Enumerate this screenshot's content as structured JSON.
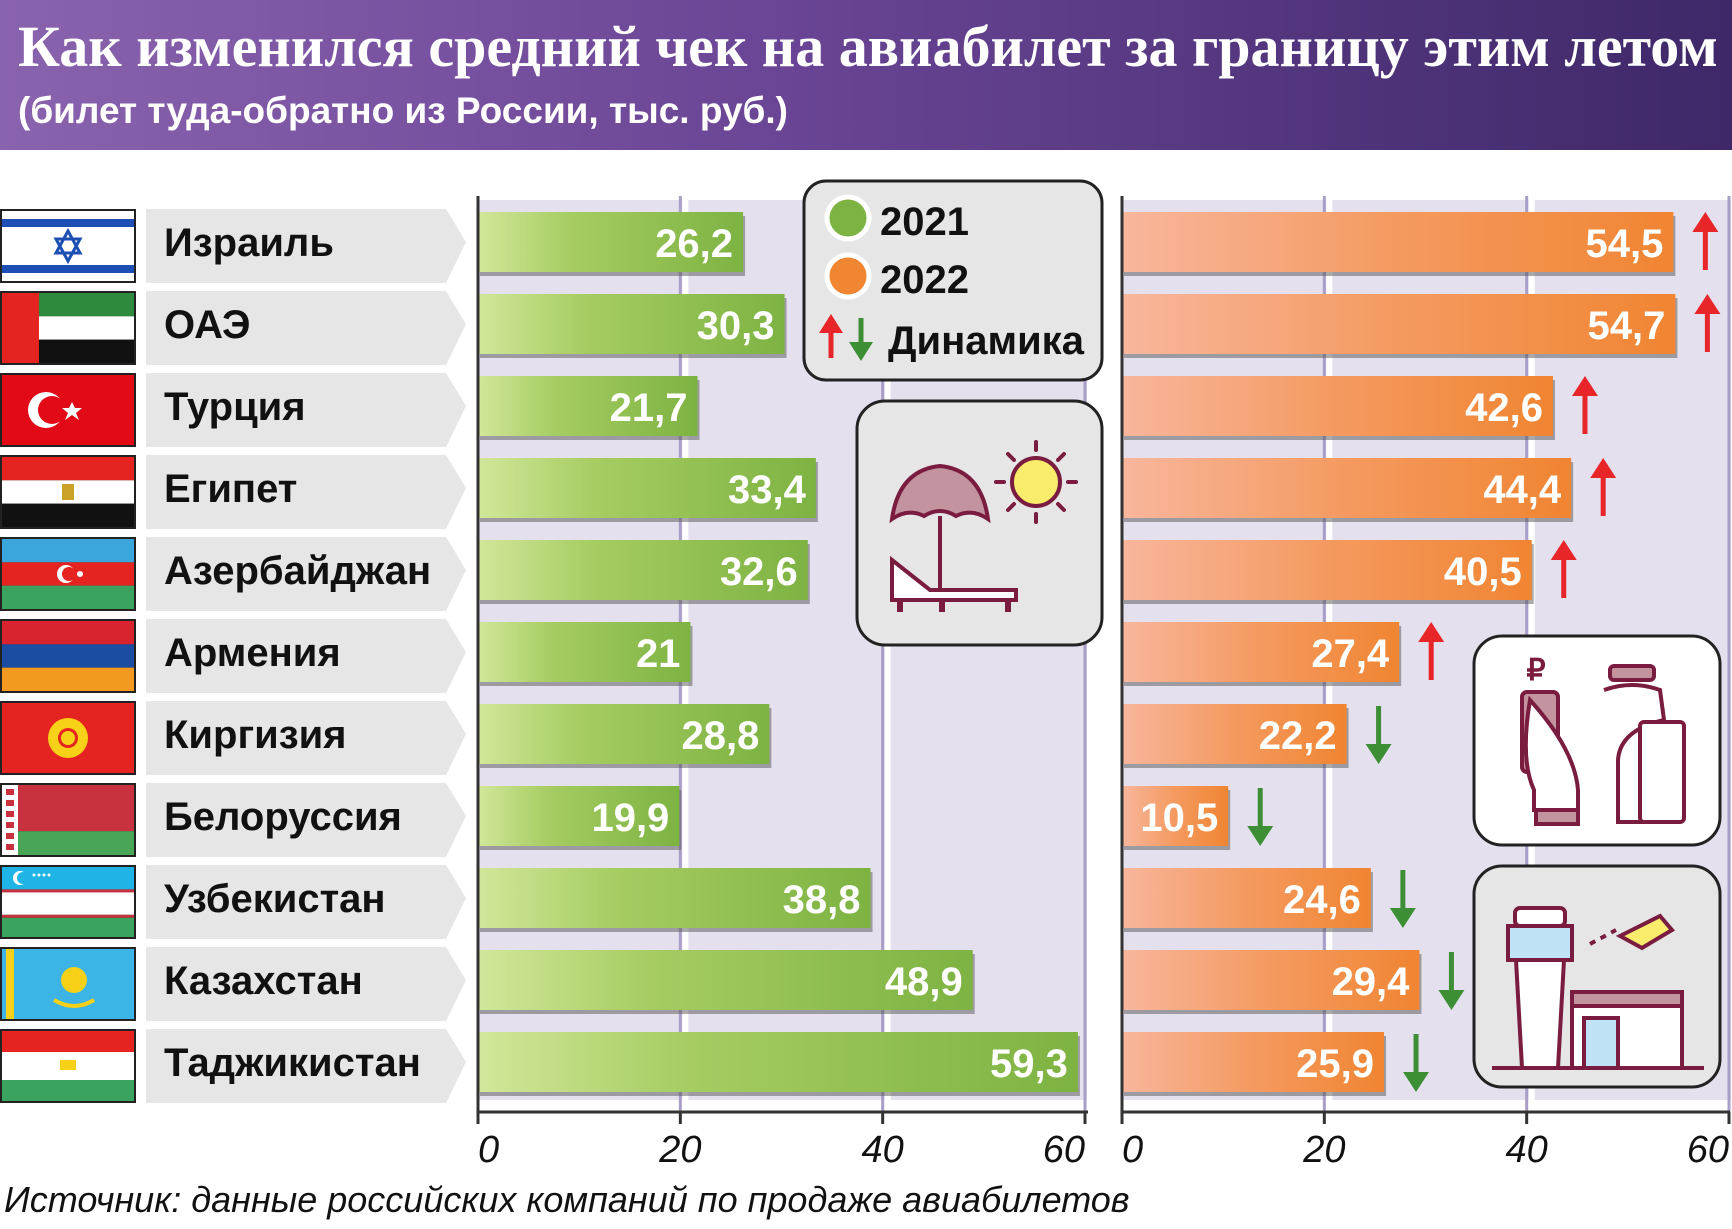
{
  "header": {
    "title": "Как изменился средний чек на авиабилет за границу этим летом",
    "subtitle": "(билет туда-обратно из России, тыс. руб.)"
  },
  "source": "Источник: данные российских компаний по продаже авиабилетов",
  "legend": {
    "series_2021": "2021",
    "series_2022": "2022",
    "dynamics": "Динамика"
  },
  "colors": {
    "green": "#7db342",
    "green_light": "#d2e79a",
    "orange": "#f08532",
    "orange_light": "#f8b69c",
    "arrow_up": "#e8262a",
    "arrow_down": "#3d8f36",
    "plot_bg": "#e5e0ee",
    "grid": "#a99ec7",
    "label_bg": "#e6e6e6",
    "header_start": "#8a63ae",
    "header_end": "#3e2868"
  },
  "icons": [
    "beach-umbrella-sun-icon",
    "payment-ruble-icon",
    "airport-tower-plane-icon"
  ],
  "chart_data": {
    "type": "bar",
    "orientation": "horizontal",
    "categories": [
      "Израиль",
      "ОАЭ",
      "Турция",
      "Египет",
      "Азербайджан",
      "Армения",
      "Киргизия",
      "Белоруссия",
      "Узбекистан",
      "Казахстан",
      "Таджикистан"
    ],
    "series": [
      {
        "name": "2021",
        "values": [
          26.2,
          30.3,
          21.7,
          33.4,
          32.6,
          21,
          28.8,
          19.9,
          38.8,
          48.9,
          59.3
        ],
        "labels": [
          "26,2",
          "30,3",
          "21,7",
          "33,4",
          "32,6",
          "21",
          "28,8",
          "19,9",
          "38,8",
          "48,9",
          "59,3"
        ]
      },
      {
        "name": "2022",
        "values": [
          54.5,
          54.7,
          42.6,
          44.4,
          40.5,
          27.4,
          22.2,
          10.5,
          24.6,
          29.4,
          25.9
        ],
        "labels": [
          "54,5",
          "54,7",
          "42,6",
          "44,4",
          "40,5",
          "27,4",
          "22,2",
          "10,5",
          "24,6",
          "29,4",
          "25,9"
        ]
      }
    ],
    "dynamics": [
      "up",
      "up",
      "up",
      "up",
      "up",
      "up",
      "down",
      "down",
      "down",
      "down",
      "down"
    ],
    "xlim": [
      0,
      60
    ],
    "ticks": [
      0,
      20,
      40,
      60
    ],
    "tick_labels": [
      "0",
      "20",
      "40",
      "60"
    ],
    "grid": true,
    "legend_position": "top-right of left panel"
  }
}
